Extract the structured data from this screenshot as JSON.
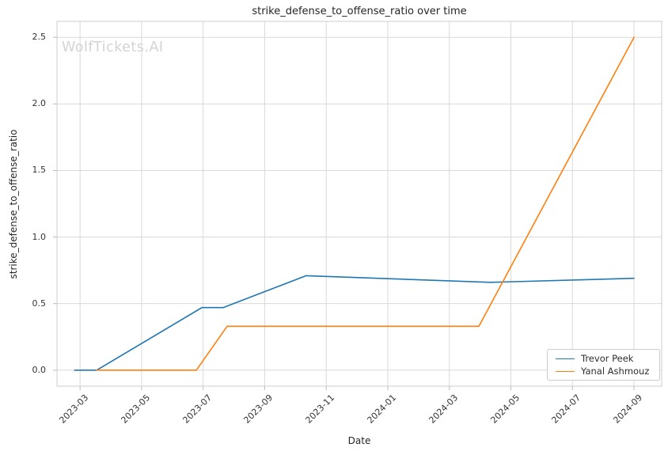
{
  "watermark": "WolfTickets.AI",
  "chart_data": {
    "type": "line",
    "title": "strike_defense_to_offense_ratio over time",
    "xlabel": "Date",
    "ylabel": "strike_defense_to_offense_ratio",
    "x_unit": "months since 2023-01-01",
    "xlim": [
      1.25,
      20.9
    ],
    "ylim": [
      -0.12,
      2.62
    ],
    "grid": true,
    "legend_position": "lower right",
    "x_ticks": [
      {
        "m": 2,
        "label": "2023-03"
      },
      {
        "m": 4,
        "label": "2023-05"
      },
      {
        "m": 6,
        "label": "2023-07"
      },
      {
        "m": 8,
        "label": "2023-09"
      },
      {
        "m": 10,
        "label": "2023-11"
      },
      {
        "m": 12,
        "label": "2024-01"
      },
      {
        "m": 14,
        "label": "2024-03"
      },
      {
        "m": 16,
        "label": "2024-05"
      },
      {
        "m": 18,
        "label": "2024-07"
      },
      {
        "m": 20,
        "label": "2024-09"
      }
    ],
    "y_ticks": [
      {
        "v": 0.0,
        "label": "0.0"
      },
      {
        "v": 0.5,
        "label": "0.5"
      },
      {
        "v": 1.0,
        "label": "1.0"
      },
      {
        "v": 1.5,
        "label": "1.5"
      },
      {
        "v": 2.0,
        "label": "2.0"
      },
      {
        "v": 2.5,
        "label": "2.5"
      }
    ],
    "series": [
      {
        "name": "Trevor Peek",
        "color": "#1f77b4",
        "points": [
          {
            "date": "2023-02-25",
            "m": 1.82,
            "y": 0.0
          },
          {
            "date": "2023-03-17",
            "m": 2.54,
            "y": 0.0
          },
          {
            "date": "2023-06-29",
            "m": 5.96,
            "y": 0.47
          },
          {
            "date": "2023-07-20",
            "m": 6.65,
            "y": 0.47
          },
          {
            "date": "2023-10-11",
            "m": 9.35,
            "y": 0.71
          },
          {
            "date": "2024-04-10",
            "m": 15.34,
            "y": 0.66
          },
          {
            "date": "2024-09-01",
            "m": 20.0,
            "y": 0.69
          }
        ]
      },
      {
        "name": "Yanal Ashmouz",
        "color": "#ff7f0e",
        "points": [
          {
            "date": "2023-03-17",
            "m": 2.54,
            "y": 0.0
          },
          {
            "date": "2023-06-24",
            "m": 5.78,
            "y": 0.0
          },
          {
            "date": "2023-07-24",
            "m": 6.78,
            "y": 0.33
          },
          {
            "date": "2024-03-30",
            "m": 14.96,
            "y": 0.33
          },
          {
            "date": "2024-09-01",
            "m": 20.0,
            "y": 2.5
          }
        ]
      }
    ],
    "style": {
      "grid_color": "#d9d9d9",
      "spine_color": "#cccccc",
      "tick_color": "#bbbbbb",
      "line_width": 1.6
    }
  }
}
